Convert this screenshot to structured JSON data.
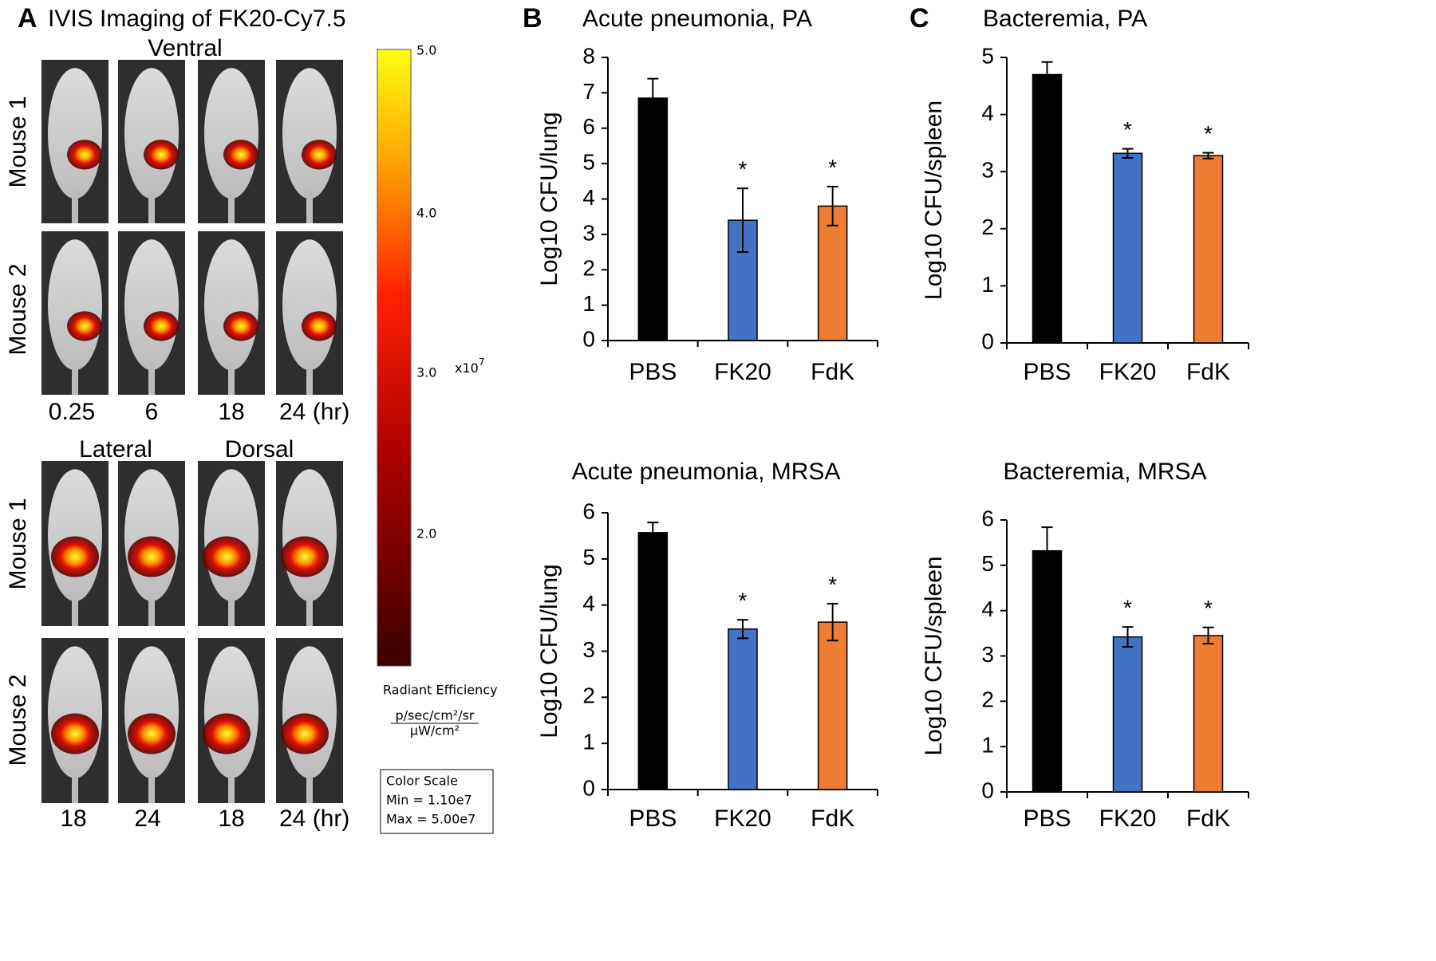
{
  "panel_labels": [
    "A",
    "B",
    "C"
  ],
  "panel_a": {
    "title": "IVIS Imaging of  FK20-Cy7.5",
    "top_view": "Ventral",
    "top_rows": [
      "Mouse 1",
      "Mouse 2"
    ],
    "top_times": [
      "0.25",
      "6",
      "18",
      "24 (hr)"
    ],
    "bottom_views": [
      "Lateral",
      "Dorsal"
    ],
    "bottom_rows": [
      "Mouse 1",
      "Mouse 2"
    ],
    "bottom_times": [
      "18",
      "24",
      "18",
      "24 (hr)"
    ],
    "colorbar": {
      "ticks": [
        "5.0",
        "4.0",
        "3.0",
        "2.0"
      ],
      "multiplier": "x10",
      "exponent": "7",
      "label": "Radiant Efficiency",
      "unit_top": "p/sec/cm²/sr",
      "unit_bottom": "μW/cm²"
    },
    "color_scale": {
      "title": "Color Scale",
      "min": "Min = 1.10e7",
      "max": "Max = 5.00e7"
    }
  },
  "chart_data": [
    {
      "type": "bar",
      "title": "Acute pneumonia, PA",
      "ylabel": "Log10 CFU/lung",
      "categories": [
        "PBS",
        "FK20",
        "FdK"
      ],
      "values": [
        6.85,
        3.4,
        3.8
      ],
      "errors": [
        0.55,
        0.9,
        0.55
      ],
      "significance": [
        null,
        "*",
        "*"
      ],
      "colors": [
        "#000000",
        "#4472c4",
        "#ed7d31"
      ],
      "ylim": [
        0,
        8
      ],
      "yticks": [
        0,
        1,
        2,
        3,
        4,
        5,
        6,
        7,
        8
      ]
    },
    {
      "type": "bar",
      "title": "Bacteremia, PA",
      "ylabel": "Log10 CFU/spleen",
      "categories": [
        "PBS",
        "FK20",
        "FdK"
      ],
      "values": [
        4.7,
        3.32,
        3.28
      ],
      "errors": [
        0.22,
        0.08,
        0.05
      ],
      "significance": [
        null,
        "*",
        "*"
      ],
      "colors": [
        "#000000",
        "#4472c4",
        "#ed7d31"
      ],
      "ylim": [
        0,
        5
      ],
      "yticks": [
        0,
        1,
        2,
        3,
        4,
        5
      ]
    },
    {
      "type": "bar",
      "title": "Acute pneumonia, MRSA",
      "ylabel": "Log10 CFU/lung",
      "categories": [
        "PBS",
        "FK20",
        "FdK"
      ],
      "values": [
        5.57,
        3.48,
        3.63
      ],
      "errors": [
        0.22,
        0.2,
        0.4
      ],
      "significance": [
        null,
        "*",
        "*"
      ],
      "colors": [
        "#000000",
        "#4472c4",
        "#ed7d31"
      ],
      "ylim": [
        0,
        6
      ],
      "yticks": [
        0,
        1,
        2,
        3,
        4,
        5,
        6
      ]
    },
    {
      "type": "bar",
      "title": "Bacteremia, MRSA",
      "ylabel": "Log10 CFU/spleen",
      "categories": [
        "PBS",
        "FK20",
        "FdK"
      ],
      "values": [
        5.32,
        3.42,
        3.45
      ],
      "errors": [
        0.52,
        0.22,
        0.18
      ],
      "significance": [
        null,
        "*",
        "*"
      ],
      "colors": [
        "#000000",
        "#4472c4",
        "#ed7d31"
      ],
      "ylim": [
        0,
        6
      ],
      "yticks": [
        0,
        1,
        2,
        3,
        4,
        5,
        6
      ]
    }
  ]
}
